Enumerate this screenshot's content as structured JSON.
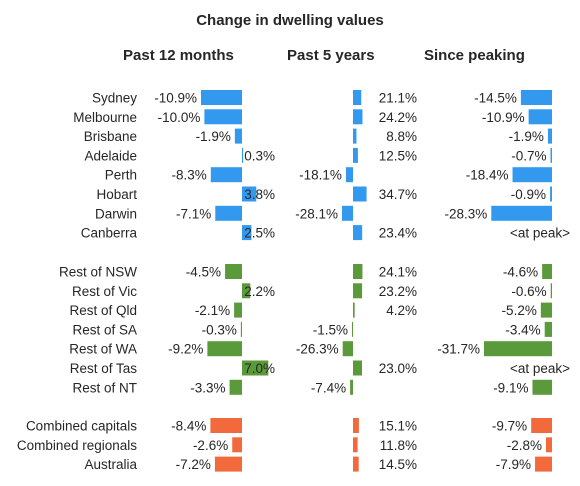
{
  "chart_data": {
    "type": "bar",
    "orientation": "horizontal",
    "title": "Change in dwelling values",
    "colors": {
      "capitals": "#3399ee",
      "regionals": "#5a9a3a",
      "combined": "#f26a3b",
      "text": "#262626"
    },
    "panels": [
      {
        "key": "past12",
        "title": "Past 12 months",
        "scale_min": -10.9
      },
      {
        "key": "past5",
        "title": "Past 5 years",
        "scale_min": -28.1
      },
      {
        "key": "peak",
        "title": "Since peaking",
        "scale_min": -31.7
      }
    ],
    "groups": [
      {
        "name": "capitals",
        "rows": [
          {
            "region": "Sydney",
            "past12": -10.9,
            "past12_label": "-10.9%",
            "past5": 21.1,
            "past5_label": "21.1%",
            "peak": -14.5,
            "peak_label": "-14.5%"
          },
          {
            "region": "Melbourne",
            "past12": -10.0,
            "past12_label": "-10.0%",
            "past5": 24.2,
            "past5_label": "24.2%",
            "peak": -10.9,
            "peak_label": "-10.9%"
          },
          {
            "region": "Brisbane",
            "past12": -1.9,
            "past12_label": "-1.9%",
            "past5": 8.8,
            "past5_label": "8.8%",
            "peak": -1.9,
            "peak_label": "-1.9%"
          },
          {
            "region": "Adelaide",
            "past12": 0.3,
            "past12_label": "0.3%",
            "past5": 12.5,
            "past5_label": "12.5%",
            "peak": -0.7,
            "peak_label": "-0.7%"
          },
          {
            "region": "Perth",
            "past12": -8.3,
            "past12_label": "-8.3%",
            "past5": -18.1,
            "past5_label": "-18.1%",
            "peak": -18.4,
            "peak_label": "-18.4%"
          },
          {
            "region": "Hobart",
            "past12": 3.8,
            "past12_label": "3.8%",
            "past5": 34.7,
            "past5_label": "34.7%",
            "peak": -0.9,
            "peak_label": "-0.9%"
          },
          {
            "region": "Darwin",
            "past12": -7.1,
            "past12_label": "-7.1%",
            "past5": -28.1,
            "past5_label": "-28.1%",
            "peak": -28.3,
            "peak_label": "-28.3%"
          },
          {
            "region": "Canberra",
            "past12": 2.5,
            "past12_label": "2.5%",
            "past5": 23.4,
            "past5_label": "23.4%",
            "peak": null,
            "peak_label": "<at peak>"
          }
        ]
      },
      {
        "name": "regionals",
        "rows": [
          {
            "region": "Rest of NSW",
            "past12": -4.5,
            "past12_label": "-4.5%",
            "past5": 24.1,
            "past5_label": "24.1%",
            "peak": -4.6,
            "peak_label": "-4.6%"
          },
          {
            "region": "Rest of Vic",
            "past12": 2.2,
            "past12_label": "2.2%",
            "past5": 23.2,
            "past5_label": "23.2%",
            "peak": -0.6,
            "peak_label": "-0.6%"
          },
          {
            "region": "Rest of Qld",
            "past12": -2.1,
            "past12_label": "-2.1%",
            "past5": 4.2,
            "past5_label": "4.2%",
            "peak": -5.2,
            "peak_label": "-5.2%"
          },
          {
            "region": "Rest of SA",
            "past12": -0.3,
            "past12_label": "-0.3%",
            "past5": -1.5,
            "past5_label": "-1.5%",
            "peak": -3.4,
            "peak_label": "-3.4%"
          },
          {
            "region": "Rest of WA",
            "past12": -9.2,
            "past12_label": "-9.2%",
            "past5": -26.3,
            "past5_label": "-26.3%",
            "peak": -31.7,
            "peak_label": "-31.7%"
          },
          {
            "region": "Rest of Tas",
            "past12": 7.0,
            "past12_label": "7.0%",
            "past5": 23.0,
            "past5_label": "23.0%",
            "peak": null,
            "peak_label": "<at peak>"
          },
          {
            "region": "Rest of NT",
            "past12": -3.3,
            "past12_label": "-3.3%",
            "past5": -7.4,
            "past5_label": "-7.4%",
            "peak": -9.1,
            "peak_label": "-9.1%"
          }
        ]
      },
      {
        "name": "combined",
        "rows": [
          {
            "region": "Combined capitals",
            "past12": -8.4,
            "past12_label": "-8.4%",
            "past5": 15.1,
            "past5_label": "15.1%",
            "peak": -9.7,
            "peak_label": "-9.7%"
          },
          {
            "region": "Combined regionals",
            "past12": -2.6,
            "past12_label": "-2.6%",
            "past5": 11.8,
            "past5_label": "11.8%",
            "peak": -2.8,
            "peak_label": "-2.8%"
          },
          {
            "region": "Australia",
            "past12": -7.2,
            "past12_label": "-7.2%",
            "past5": 14.5,
            "past5_label": "14.5%",
            "peak": -7.9,
            "peak_label": "-7.9%"
          }
        ]
      }
    ]
  }
}
